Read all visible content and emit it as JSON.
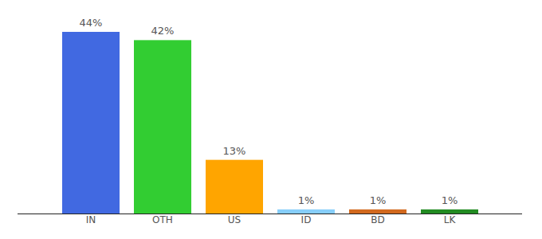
{
  "chart_data": {
    "type": "bar",
    "categories": [
      "IN",
      "OTH",
      "US",
      "ID",
      "BD",
      "LK"
    ],
    "values": [
      44,
      42,
      13,
      1,
      1,
      1
    ],
    "value_labels": [
      "44%",
      "42%",
      "13%",
      "1%",
      "1%",
      "1%"
    ],
    "colors": [
      "#4169e1",
      "#32cd32",
      "#ffa500",
      "#87cefa",
      "#d2691e",
      "#228b22"
    ],
    "ylim": [
      0,
      44
    ],
    "data_labels": true,
    "grid": false,
    "tick_labels": "x"
  }
}
